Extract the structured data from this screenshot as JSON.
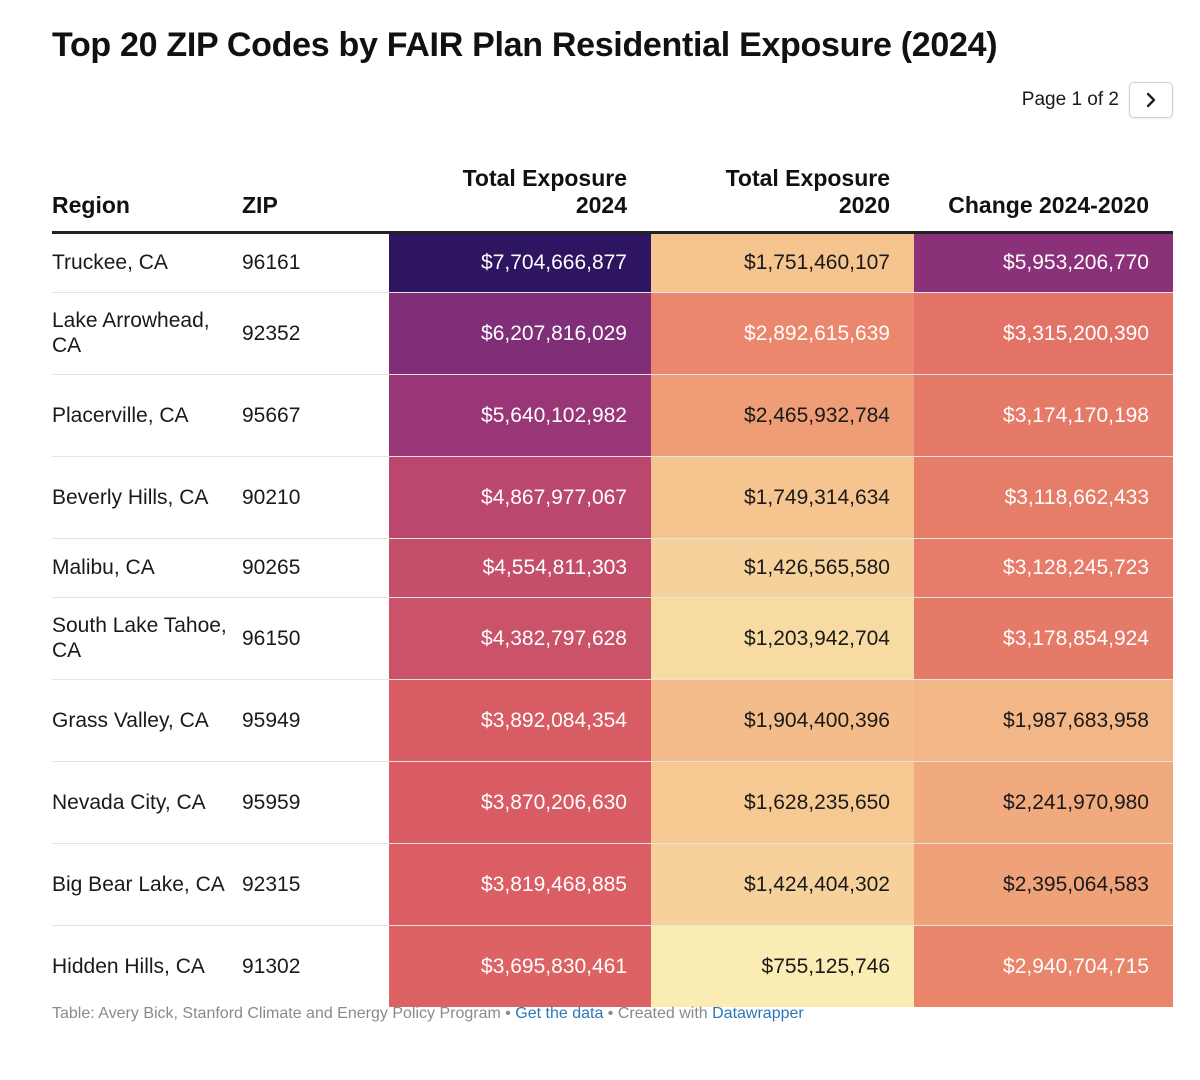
{
  "title": "Top 20 ZIP Codes by FAIR Plan Residential Exposure (2024)",
  "pagination": {
    "label": "Page 1 of 2",
    "next_icon": "chevron-right-icon"
  },
  "chart_data": {
    "type": "table",
    "title": "Top 20 ZIP Codes by FAIR Plan Residential Exposure (2024)",
    "columns": [
      "Region",
      "ZIP",
      "Total Exposure 2024",
      "Total Exposure 2020",
      "Change 2024-2020"
    ],
    "column_lines": [
      [
        "Region"
      ],
      [
        "ZIP"
      ],
      [
        "Total Exposure",
        "2024"
      ],
      [
        "Total Exposure",
        "2020"
      ],
      [
        "Change 2024-2020"
      ]
    ],
    "rows": [
      {
        "region": "Truckee, CA",
        "zip": "96161",
        "exposure_2024": "$7,704,666,877",
        "exposure_2020": "$1,751,460,107",
        "change": "$5,953,206,770"
      },
      {
        "region": "Lake Arrowhead, CA",
        "zip": "92352",
        "exposure_2024": "$6,207,816,029",
        "exposure_2020": "$2,892,615,639",
        "change": "$3,315,200,390"
      },
      {
        "region": "Placerville, CA",
        "zip": "95667",
        "exposure_2024": "$5,640,102,982",
        "exposure_2020": "$2,465,932,784",
        "change": "$3,174,170,198"
      },
      {
        "region": "Beverly Hills, CA",
        "zip": "90210",
        "exposure_2024": "$4,867,977,067",
        "exposure_2020": "$1,749,314,634",
        "change": "$3,118,662,433"
      },
      {
        "region": "Malibu, CA",
        "zip": "90265",
        "exposure_2024": "$4,554,811,303",
        "exposure_2020": "$1,426,565,580",
        "change": "$3,128,245,723"
      },
      {
        "region": "South Lake Tahoe, CA",
        "zip": "96150",
        "exposure_2024": "$4,382,797,628",
        "exposure_2020": "$1,203,942,704",
        "change": "$3,178,854,924"
      },
      {
        "region": "Grass Valley, CA",
        "zip": "95949",
        "exposure_2024": "$3,892,084,354",
        "exposure_2020": "$1,904,400,396",
        "change": "$1,987,683,958"
      },
      {
        "region": "Nevada City, CA",
        "zip": "95959",
        "exposure_2024": "$3,870,206,630",
        "exposure_2020": "$1,628,235,650",
        "change": "$2,241,970,980"
      },
      {
        "region": "Big Bear Lake, CA",
        "zip": "92315",
        "exposure_2024": "$3,819,468,885",
        "exposure_2020": "$1,424,404,302",
        "change": "$2,395,064,583"
      },
      {
        "region": "Hidden Hills, CA",
        "zip": "91302",
        "exposure_2024": "$3,695,830,461",
        "exposure_2020": "$755,125,746",
        "change": "$2,940,704,715"
      }
    ],
    "color_scale": [
      "#fbecb3",
      "#f5c48f",
      "#ec8e6d",
      "#dc5f63",
      "#c04a6c",
      "#93337a",
      "#6b2776",
      "#2a1460"
    ]
  },
  "footer": {
    "prefix": "Table: Avery Bick, Stanford Climate and Energy Policy Program",
    "sep1": " • ",
    "data_link": "Get the data",
    "sep2": " • Created with ",
    "tool_link": "Datawrapper"
  }
}
